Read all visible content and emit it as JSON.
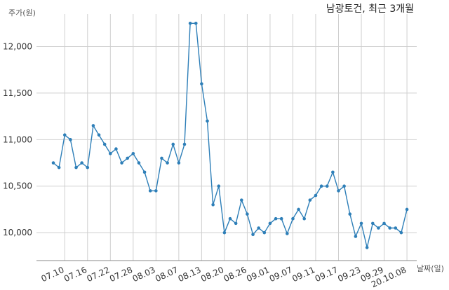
{
  "chart_data": {
    "type": "line",
    "title": "남광토건, 최근 3개월",
    "ylabel": "주가(원)",
    "xlabel": "날짜(일)",
    "ylim": [
      9700,
      12350
    ],
    "grid": true,
    "series_color": "#2e7fb8",
    "y_ticks": [
      10000,
      10500,
      11000,
      11500,
      12000
    ],
    "y_tick_labels": [
      "10,000",
      "10,500",
      "11,000",
      "11,500",
      "12,000"
    ],
    "x_tick_labels": [
      "07.10",
      "07.16",
      "07.22",
      "07.28",
      "08.03",
      "08.07",
      "08.13",
      "08.20",
      "08.26",
      "09.01",
      "09.07",
      "09.11",
      "09.17",
      "09.23",
      "09.29",
      "20.10.08"
    ],
    "x_tick_indices": [
      2,
      6,
      10,
      14,
      18,
      22,
      26,
      30,
      34,
      38,
      42,
      46,
      50,
      54,
      58,
      62
    ],
    "values": [
      10750,
      10700,
      11050,
      11000,
      10700,
      10750,
      10700,
      11150,
      11050,
      10950,
      10850,
      10900,
      10750,
      10800,
      10850,
      10750,
      10650,
      10450,
      10450,
      10800,
      10750,
      10950,
      10750,
      10950,
      12250,
      12250,
      11600,
      11200,
      10300,
      10500,
      10000,
      10150,
      10100,
      10350,
      10200,
      9980,
      10050,
      10000,
      10100,
      10150,
      10150,
      9990,
      10150,
      10250,
      10150,
      10350,
      10400,
      10500,
      10500,
      10650,
      10450,
      10500,
      10200,
      9960,
      10100,
      9840,
      10100,
      10050,
      10100,
      10050,
      10050,
      10000,
      10250
    ]
  }
}
